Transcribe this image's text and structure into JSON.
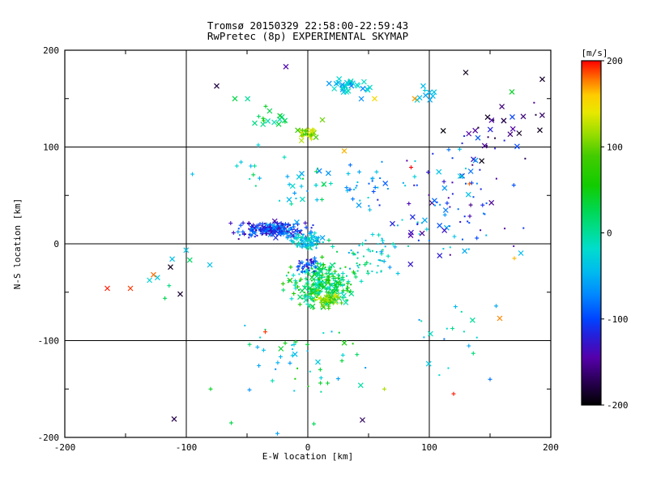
{
  "figure": {
    "title_line1": "Tromsø 20150329 22:58:00-22:59:43",
    "title_line2": "RwPretec (8p) EXPERIMENTAL SKYMAP",
    "title_color": "#4a3a3a",
    "xlabel": "E-W location [km]",
    "ylabel": "N-S location [km]",
    "colorbar_label": "[m/s]",
    "colorbar_label_color": "#ee0000",
    "background": "#ffffff",
    "frame_color": "#000000"
  },
  "chart_data": {
    "type": "scatter",
    "title": "Tromsø 20150329 22:58:00-22:59:43",
    "subtitle": "RwPretec (8p) EXPERIMENTAL SKYMAP",
    "xlabel": "E-W location [km]",
    "ylabel": "N-S location [km]",
    "xlim": [
      -200,
      200
    ],
    "ylim": [
      -200,
      200
    ],
    "xticks": [
      -200,
      -100,
      0,
      100,
      200
    ],
    "yticks": [
      -200,
      -100,
      0,
      100,
      200
    ],
    "grid_values": [
      -100,
      0,
      100
    ],
    "minor_tick_step": 50,
    "grid": true,
    "legend_position": "right-colorbar",
    "value_label": "[m/s]",
    "value_range": [
      -200,
      200
    ],
    "colorbar_ticks": [
      200,
      100,
      0,
      -100,
      -200
    ],
    "colormap": [
      {
        "v": -200,
        "c": "#000000"
      },
      {
        "v": -172,
        "c": "#2a0055"
      },
      {
        "v": -145,
        "c": "#5500aa"
      },
      {
        "v": -118,
        "c": "#2222dd"
      },
      {
        "v": -100,
        "c": "#0044ff"
      },
      {
        "v": -72,
        "c": "#0088ff"
      },
      {
        "v": -45,
        "c": "#00bbee"
      },
      {
        "v": -18,
        "c": "#00ddcc"
      },
      {
        "v": 0,
        "c": "#00dd99"
      },
      {
        "v": 25,
        "c": "#00d855"
      },
      {
        "v": 55,
        "c": "#11cc00"
      },
      {
        "v": 90,
        "c": "#44cc00"
      },
      {
        "v": 115,
        "c": "#99dd00"
      },
      {
        "v": 140,
        "c": "#e8e800"
      },
      {
        "v": 160,
        "c": "#ffcc00"
      },
      {
        "v": 178,
        "c": "#ff7700"
      },
      {
        "v": 200,
        "c": "#ff0000"
      }
    ],
    "marker_types": {
      "x": "diagonal cross",
      "+": "plus",
      ".": "dot"
    },
    "clusters": [
      {
        "cx": -27,
        "cy": 15,
        "rx": 38,
        "ry": 12,
        "n": 190,
        "v": [
          -150,
          -55
        ],
        "m": {
          "+": 0.5,
          "x": 0.2,
          ".": 0.3
        }
      },
      {
        "cx": 0,
        "cy": 3,
        "rx": 20,
        "ry": 13,
        "n": 70,
        "v": [
          -70,
          10
        ],
        "m": {
          "+": 0.5,
          ".": 0.3,
          "x": 0.2
        }
      },
      {
        "cx": 13,
        "cy": -41,
        "rx": 38,
        "ry": 33,
        "n": 240,
        "v": [
          -30,
          70
        ],
        "m": {
          "+": 0.55,
          ".": 0.3,
          "x": 0.15
        }
      },
      {
        "cx": 17,
        "cy": -57,
        "rx": 16,
        "ry": 12,
        "n": 40,
        "v": [
          70,
          140
        ],
        "m": {
          "+": 0.7,
          "x": 0.3
        }
      },
      {
        "cx": 0,
        "cy": -22,
        "rx": 16,
        "ry": 11,
        "n": 45,
        "v": [
          -140,
          -60
        ],
        "m": {
          ".": 0.7,
          "+": 0.3
        }
      },
      {
        "cx": 35,
        "cy": 162,
        "rx": 28,
        "ry": 19,
        "n": 30,
        "v": [
          -80,
          -10
        ],
        "m": {
          "x": 0.8,
          "+": 0.2
        }
      },
      {
        "cx": 0,
        "cy": 115,
        "rx": 11,
        "ry": 11,
        "n": 30,
        "v": [
          75,
          140
        ],
        "m": {
          "+": 0.6,
          "x": 0.4
        }
      },
      {
        "cx": -33,
        "cy": 132,
        "rx": 24,
        "ry": 20,
        "n": 16,
        "v": [
          -10,
          60
        ],
        "m": {
          "x": 0.6,
          "+": 0.4
        }
      },
      {
        "cx": 115,
        "cy": 40,
        "rx": 80,
        "ry": 85,
        "n": 100,
        "v": [
          -160,
          -20
        ],
        "m": {
          ".": 0.55,
          "x": 0.25,
          "+": 0.2
        }
      },
      {
        "cx": 160,
        "cy": 120,
        "rx": 55,
        "ry": 48,
        "n": 32,
        "v": [
          -200,
          -90
        ],
        "m": {
          "x": 0.6,
          ".": 0.4
        }
      },
      {
        "cx": 50,
        "cy": -10,
        "rx": 45,
        "ry": 35,
        "n": 55,
        "v": [
          -70,
          30
        ],
        "m": {
          ".": 0.6,
          "+": 0.4
        }
      },
      {
        "cx": 0,
        "cy": -120,
        "rx": 70,
        "ry": 52,
        "n": 45,
        "v": [
          -70,
          60
        ],
        "m": {
          "+": 0.5,
          ".": 0.35,
          "x": 0.15
        }
      },
      {
        "cx": 115,
        "cy": -95,
        "rx": 65,
        "ry": 55,
        "n": 18,
        "v": [
          -90,
          30
        ],
        "m": {
          ".": 0.6,
          "+": 0.25,
          "x": 0.15
        }
      },
      {
        "cx": -120,
        "cy": -35,
        "rx": 55,
        "ry": 45,
        "n": 8,
        "v": [
          -60,
          40
        ],
        "m": {
          "x": 0.5,
          "+": 0.5
        }
      },
      {
        "cx": -45,
        "cy": 75,
        "rx": 32,
        "ry": 32,
        "n": 10,
        "v": [
          -50,
          30
        ],
        "m": {
          "+": 0.6,
          ".": 0.4
        }
      },
      {
        "cx": 0,
        "cy": 60,
        "rx": 28,
        "ry": 35,
        "n": 25,
        "v": [
          -80,
          40
        ],
        "m": {
          "+": 0.5,
          ".": 0.3,
          "x": 0.2
        }
      },
      {
        "cx": 45,
        "cy": 55,
        "rx": 32,
        "ry": 40,
        "n": 25,
        "v": [
          -100,
          -10
        ],
        "m": {
          ".": 0.5,
          "+": 0.3,
          "x": 0.2
        }
      },
      {
        "cx": 100,
        "cy": 155,
        "rx": 22,
        "ry": 18,
        "n": 8,
        "v": [
          -60,
          -20
        ],
        "m": {
          "x": 0.7,
          "+": 0.3
        }
      }
    ],
    "points": [
      [
        -165,
        -46,
        195,
        "x"
      ],
      [
        -146,
        -46,
        190,
        "x"
      ],
      [
        -127,
        -32,
        180,
        "x"
      ],
      [
        -113,
        -24,
        -190,
        "x"
      ],
      [
        -105,
        -52,
        -185,
        "x"
      ],
      [
        -110,
        -181,
        -175,
        "x"
      ],
      [
        -75,
        163,
        -180,
        "x"
      ],
      [
        -18,
        183,
        -140,
        "x"
      ],
      [
        85,
        79,
        200,
        "+"
      ],
      [
        30,
        96,
        165,
        "x"
      ],
      [
        55,
        150,
        150,
        "x"
      ],
      [
        88,
        150,
        170,
        "x"
      ],
      [
        95,
        163,
        -45,
        "x"
      ],
      [
        130,
        177,
        -190,
        "x"
      ],
      [
        193,
        170,
        -185,
        "x"
      ],
      [
        158,
        -77,
        175,
        "x"
      ],
      [
        120,
        -155,
        195,
        "+"
      ],
      [
        -35,
        -91,
        190,
        "+"
      ],
      [
        -80,
        -150,
        40,
        "+"
      ],
      [
        -63,
        -185,
        30,
        "+"
      ],
      [
        -25,
        -196,
        -60,
        "+"
      ],
      [
        5,
        -186,
        25,
        "+"
      ],
      [
        45,
        -182,
        -170,
        "x"
      ],
      [
        150,
        -140,
        -80,
        "+"
      ],
      [
        170,
        -15,
        165,
        "+"
      ],
      [
        133,
        62,
        180,
        "+"
      ],
      [
        12,
        128,
        100,
        "x"
      ],
      [
        -60,
        150,
        30,
        "x"
      ],
      [
        63,
        -150,
        120,
        "+"
      ],
      [
        -95,
        72,
        -40,
        "+"
      ],
      [
        168,
        157,
        40,
        "x"
      ]
    ]
  }
}
